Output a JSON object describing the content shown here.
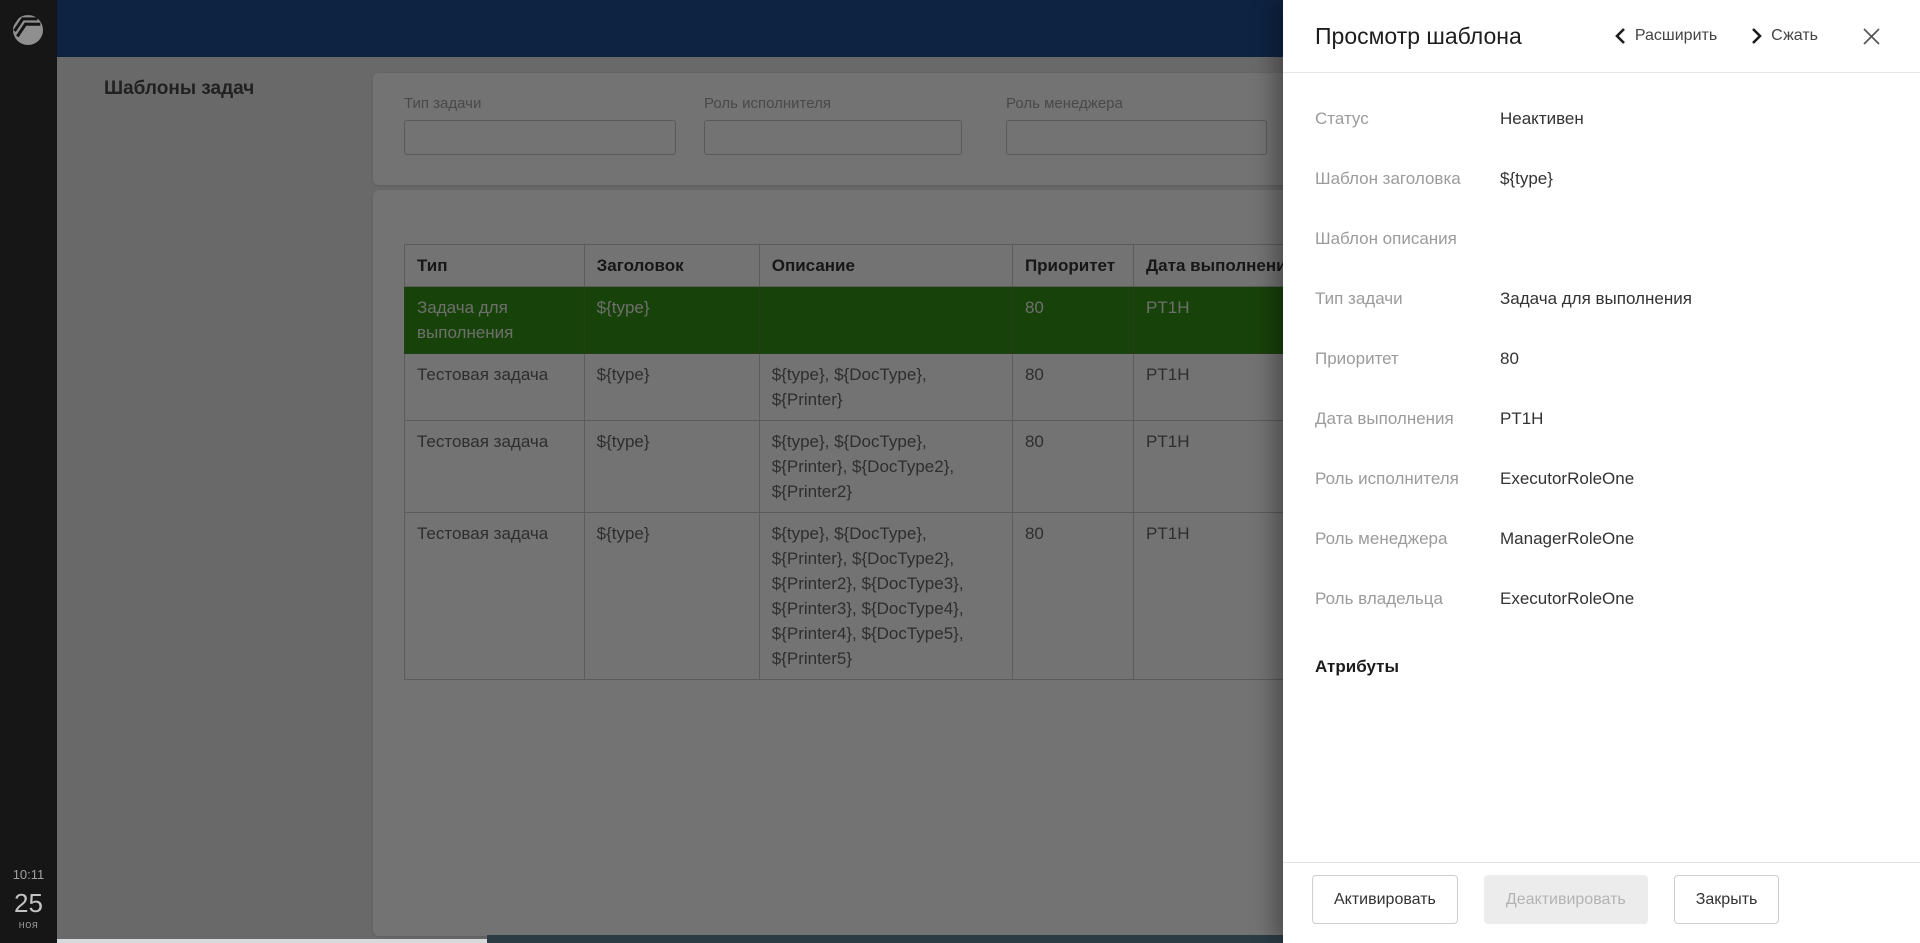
{
  "colors": {
    "accent_green": "#339214",
    "topbar_navy": "#0e2342",
    "strip_teal": "#2b3c44"
  },
  "sidebar": {
    "time": "10:11",
    "day": "25",
    "month": "ноя"
  },
  "content": {
    "page_title": "Шаблоны задач",
    "filters": [
      {
        "label": "Тип задачи",
        "value": ""
      },
      {
        "label": "Роль исполнителя",
        "value": ""
      },
      {
        "label": "Роль менеджера",
        "value": ""
      }
    ],
    "table": {
      "columns": [
        "Тип",
        "Заголовок",
        "Описание",
        "Приоритет",
        "Дата выполнения"
      ],
      "rows": [
        {
          "selected": true,
          "cells": [
            "Задача для выполнения",
            "${type}",
            "",
            "80",
            "PT1H"
          ]
        },
        {
          "selected": false,
          "cells": [
            "Тестовая задача",
            "${type}",
            "${type}, ${DocType}, ${Printer}",
            "80",
            "PT1H"
          ]
        },
        {
          "selected": false,
          "cells": [
            "Тестовая задача",
            "${type}",
            "${type}, ${DocType}, ${Printer}, ${DocType2}, ${Printer2}",
            "80",
            "PT1H"
          ]
        },
        {
          "selected": false,
          "cells": [
            "Тестовая задача",
            "${type}",
            "${type}, ${DocType}, ${Printer}, ${DocType2}, ${Printer2}, ${DocType3}, ${Printer3}, ${DocType4}, ${Printer4}, ${DocType5}, ${Printer5}",
            "80",
            "PT1H"
          ]
        }
      ]
    }
  },
  "panel": {
    "title": "Просмотр шаблона",
    "expand_label": "Расширить",
    "collapse_label": "Сжать",
    "fields": [
      {
        "label": "Статус",
        "value": "Неактивен"
      },
      {
        "label": "Шаблон заголовка",
        "value": "${type}"
      },
      {
        "label": "Шаблон описания",
        "value": ""
      },
      {
        "label": "Тип задачи",
        "value": "Задача для выполнения"
      },
      {
        "label": "Приоритет",
        "value": "80"
      },
      {
        "label": "Дата выполнения",
        "value": "PT1H"
      },
      {
        "label": "Роль исполнителя",
        "value": "ExecutorRoleOne"
      },
      {
        "label": "Роль менеджера",
        "value": "ManagerRoleOne"
      },
      {
        "label": "Роль владельца",
        "value": "ExecutorRoleOne"
      }
    ],
    "attributes_heading": "Атрибуты",
    "buttons": [
      {
        "label": "Активировать",
        "disabled": false
      },
      {
        "label": "Деактивировать",
        "disabled": true
      },
      {
        "label": "Закрыть",
        "disabled": false
      }
    ]
  }
}
